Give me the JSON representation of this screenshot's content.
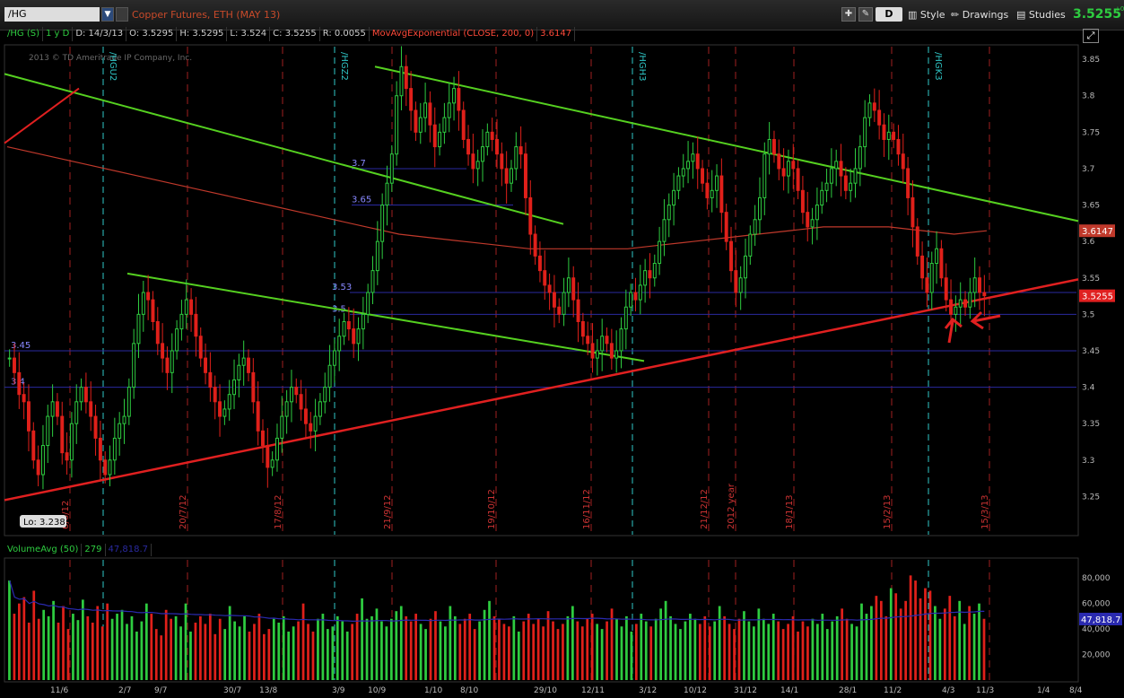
{
  "toolbar": {
    "symbol": "/HG",
    "description": "Copper Futures, ETH (MAY 13)",
    "d_label": "D",
    "style_label": "Style",
    "drawings_label": "Drawings",
    "studies_label": "Studies",
    "last_price": "3.5255",
    "change_hint": "+0"
  },
  "infobar": {
    "symbol": "/HG (S)",
    "period": "1 y D",
    "date": "D: 14/3/13",
    "open": "O: 3.5295",
    "high": "H: 3.5295",
    "low": "L: 3.524",
    "close": "C: 3.5255",
    "range": "R: 0.0055",
    "ma_label": "MovAvgExponential (CLOSE, 200, 0)",
    "ma_value": "3.6147"
  },
  "copyright": "2013 © TD Ameritrade IP Company, Inc.",
  "colors": {
    "up": "#2ecc40",
    "down": "#e0201a",
    "ma": "#c0392b",
    "trend_green": "#55d020",
    "trend_red": "#e02020",
    "hline": "#2a2aa0",
    "month_sep": "#a02020",
    "expiry": "#30c8c8"
  },
  "chart_data": [
    {
      "type": "candlestick",
      "title": "",
      "y_range": [
        3.2,
        3.86
      ],
      "y_ticks": [
        "3.85",
        "3.8",
        "3.75",
        "3.7",
        "3.65",
        "3.6",
        "3.55",
        "3.5",
        "3.45",
        "3.4",
        "3.35",
        "3.3",
        "3.25"
      ],
      "x_labels": [
        "11/6",
        "2/7",
        "9/7",
        "30/7",
        "13/8",
        "3/9",
        "10/9",
        "1/10",
        "8/10",
        "29/10",
        "12/11",
        "3/12",
        "10/12",
        "31/12",
        "14/1",
        "28/1",
        "11/2",
        "4/3",
        "11/3",
        "1/4",
        "8/4"
      ],
      "x_grid_labels": [
        "6/6/12",
        "20/7/12",
        "17/8/12",
        "21/9/12",
        "19/10/12",
        "16/11/12",
        "21/12/12",
        "2012 year",
        "18/1/13",
        "15/2/13",
        "15/3/13"
      ],
      "expiry_labels": [
        "/HGU2",
        "/HGZ2",
        "/HGH3",
        "/HGK3"
      ],
      "horizontal_levels": [
        {
          "value": 3.45,
          "label": "3.45"
        },
        {
          "value": 3.4,
          "label": "3.4"
        },
        {
          "value": 3.53,
          "label": "3.53"
        },
        {
          "value": 3.5,
          "label": "3.5"
        },
        {
          "value": 3.7,
          "label": "3.7"
        },
        {
          "value": 3.65,
          "label": "3.65"
        }
      ],
      "price_badges": [
        {
          "value": 3.6147,
          "label": "3.6147"
        },
        {
          "value": 3.5255,
          "label": "3.5255"
        }
      ],
      "low_label": "Lo: 3.238",
      "close_series": [
        3.44,
        3.42,
        3.39,
        3.38,
        3.34,
        3.3,
        3.28,
        3.32,
        3.36,
        3.38,
        3.36,
        3.31,
        3.3,
        3.35,
        3.38,
        3.4,
        3.38,
        3.36,
        3.33,
        3.3,
        3.28,
        3.3,
        3.33,
        3.35,
        3.36,
        3.4,
        3.46,
        3.5,
        3.53,
        3.52,
        3.49,
        3.46,
        3.44,
        3.42,
        3.45,
        3.48,
        3.5,
        3.52,
        3.5,
        3.47,
        3.44,
        3.42,
        3.4,
        3.38,
        3.36,
        3.37,
        3.39,
        3.41,
        3.43,
        3.44,
        3.42,
        3.38,
        3.34,
        3.32,
        3.29,
        3.3,
        3.33,
        3.36,
        3.38,
        3.4,
        3.39,
        3.37,
        3.35,
        3.34,
        3.36,
        3.38,
        3.4,
        3.43,
        3.45,
        3.47,
        3.49,
        3.48,
        3.46,
        3.48,
        3.5,
        3.53,
        3.56,
        3.6,
        3.65,
        3.68,
        3.72,
        3.8,
        3.84,
        3.81,
        3.78,
        3.75,
        3.77,
        3.79,
        3.76,
        3.73,
        3.75,
        3.77,
        3.79,
        3.81,
        3.78,
        3.74,
        3.72,
        3.7,
        3.71,
        3.73,
        3.75,
        3.74,
        3.72,
        3.7,
        3.68,
        3.7,
        3.73,
        3.72,
        3.66,
        3.61,
        3.58,
        3.56,
        3.54,
        3.53,
        3.51,
        3.5,
        3.53,
        3.55,
        3.52,
        3.49,
        3.47,
        3.46,
        3.44,
        3.45,
        3.47,
        3.46,
        3.44,
        3.45,
        3.48,
        3.51,
        3.53,
        3.52,
        3.54,
        3.56,
        3.55,
        3.57,
        3.6,
        3.63,
        3.65,
        3.67,
        3.69,
        3.7,
        3.71,
        3.72,
        3.7,
        3.68,
        3.66,
        3.67,
        3.69,
        3.64,
        3.6,
        3.56,
        3.53,
        3.55,
        3.58,
        3.61,
        3.63,
        3.66,
        3.72,
        3.74,
        3.72,
        3.7,
        3.69,
        3.71,
        3.7,
        3.67,
        3.64,
        3.62,
        3.63,
        3.65,
        3.67,
        3.68,
        3.7,
        3.71,
        3.69,
        3.67,
        3.68,
        3.7,
        3.73,
        3.77,
        3.79,
        3.78,
        3.76,
        3.74,
        3.75,
        3.74,
        3.72,
        3.7,
        3.66,
        3.62,
        3.58,
        3.55,
        3.53,
        3.57,
        3.59,
        3.55,
        3.52,
        3.5,
        3.51,
        3.52,
        3.51,
        3.53,
        3.55,
        3.53,
        3.5255
      ],
      "ema_200": [
        3.73,
        3.72,
        3.71,
        3.7,
        3.69,
        3.68,
        3.67,
        3.66,
        3.65,
        3.64,
        3.63,
        3.62,
        3.61,
        3.605,
        3.6,
        3.595,
        3.59,
        3.59,
        3.59,
        3.59,
        3.595,
        3.6,
        3.605,
        3.61,
        3.615,
        3.62,
        3.62,
        3.62,
        3.615,
        3.61,
        3.6147
      ]
    },
    {
      "type": "bar",
      "title": "VolumeAvg (50)",
      "y_range": [
        0,
        90000
      ],
      "y_ticks": [
        "80,000",
        "60,000",
        "40,000",
        "20,000"
      ],
      "header_value": "279",
      "avg_label": "47,818.7",
      "avg_value": 47818.7,
      "volumes": [
        78000,
        52000,
        60000,
        65000,
        45000,
        70000,
        48000,
        55000,
        50000,
        62000,
        45000,
        58000,
        40000,
        52000,
        47000,
        63000,
        50000,
        45000,
        58000,
        42000,
        60000,
        48000,
        52000,
        55000,
        44000,
        50000,
        38000,
        46000,
        60000,
        52000,
        40000,
        35000,
        55000,
        48000,
        50000,
        42000,
        60000,
        38000,
        45000,
        50000,
        44000,
        52000,
        36000,
        48000,
        40000,
        58000,
        46000,
        42000,
        50000,
        38000,
        44000,
        52000,
        36000,
        40000,
        48000,
        45000,
        50000,
        38000,
        42000,
        46000,
        60000,
        44000,
        38000,
        48000,
        52000,
        40000,
        42000,
        50000,
        46000,
        38000,
        44000,
        52000,
        64000,
        48000,
        50000,
        56000,
        46000,
        42000,
        48000,
        54000,
        58000,
        50000,
        46000,
        52000,
        44000,
        40000,
        48000,
        54000,
        46000,
        42000,
        58000,
        50000,
        44000,
        48000,
        52000,
        40000,
        46000,
        55000,
        62000,
        50000,
        48000,
        44000,
        42000,
        50000,
        38000,
        46000,
        52000,
        44000,
        48000,
        42000,
        54000,
        46000,
        40000,
        44000,
        50000,
        58000,
        46000,
        42000,
        48000,
        52000,
        44000,
        40000,
        46000,
        56000,
        48000,
        42000,
        50000,
        38000,
        44000,
        52000,
        46000,
        42000,
        48000,
        56000,
        62000,
        50000,
        44000,
        40000,
        46000,
        52000,
        48000,
        44000,
        50000,
        42000,
        46000,
        58000,
        50000,
        44000,
        40000,
        48000,
        54000,
        46000,
        42000,
        56000,
        48000,
        44000,
        52000,
        46000,
        40000,
        44000,
        50000,
        38000,
        46000,
        42000,
        48000,
        44000,
        52000,
        40000,
        46000,
        50000,
        56000,
        48000,
        44000,
        42000,
        60000,
        52000,
        58000,
        66000,
        62000,
        50000,
        72000,
        68000,
        56000,
        62000,
        82000,
        78000,
        64000,
        72000,
        70000,
        58000,
        48000,
        56000,
        66000,
        50000,
        62000,
        44000,
        58000,
        52000,
        60000,
        48000
      ]
    }
  ]
}
